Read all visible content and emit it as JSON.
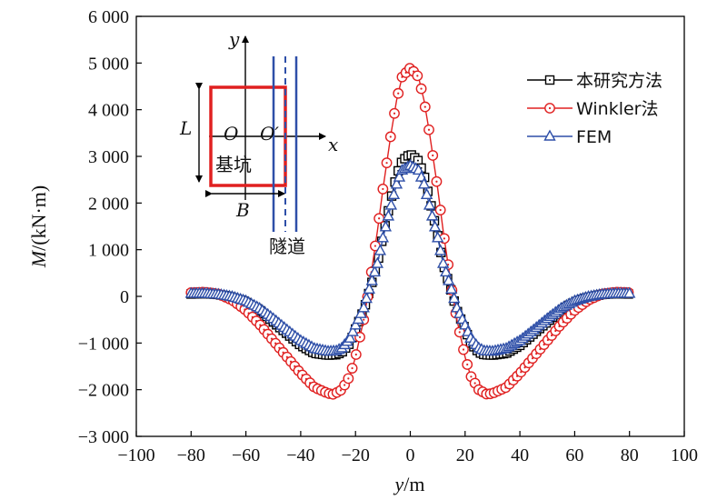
{
  "chart_data": {
    "type": "line",
    "xlabel": "y/m",
    "ylabel": "M/(kN·m)",
    "xlim": [
      -100,
      100
    ],
    "ylim": [
      -3000,
      6000
    ],
    "x_ticks": [
      -100,
      -80,
      -60,
      -40,
      -20,
      0,
      20,
      40,
      60,
      80,
      100
    ],
    "x_tick_labels": [
      "−100",
      "−80",
      "−60",
      "−40",
      "−20",
      "0",
      "20",
      "40",
      "60",
      "80",
      "100"
    ],
    "y_ticks": [
      -3000,
      -2000,
      -1000,
      0,
      1000,
      2000,
      3000,
      4000,
      5000,
      6000
    ],
    "y_tick_labels": [
      "−3 000",
      "−2 000",
      "−1 000",
      "0",
      "1 000",
      "2 000",
      "3 000",
      "4 000",
      "5 000",
      "6 000"
    ],
    "legend_position": "top-right",
    "series": [
      {
        "name": "本研究方法",
        "color": "#000000",
        "marker": "square",
        "x": [
          -80,
          -75,
          -70,
          -65,
          -60,
          -55,
          -50,
          -45,
          -40,
          -35,
          -30,
          -27,
          -25,
          -22,
          -20,
          -17,
          -15,
          -12,
          -10,
          -7,
          -5,
          -3,
          0,
          3,
          5,
          7,
          10,
          12,
          15,
          17,
          20,
          22,
          25,
          27,
          30,
          35,
          40,
          45,
          50,
          55,
          60,
          65,
          70,
          75,
          80
        ],
        "y": [
          50,
          60,
          40,
          -20,
          -120,
          -300,
          -550,
          -800,
          -1050,
          -1220,
          -1260,
          -1250,
          -1200,
          -1000,
          -700,
          -300,
          100,
          700,
          1300,
          2100,
          2600,
          2900,
          3050,
          2900,
          2600,
          2100,
          1300,
          700,
          100,
          -300,
          -700,
          -1000,
          -1200,
          -1250,
          -1260,
          -1220,
          -1050,
          -800,
          -550,
          -300,
          -120,
          -20,
          40,
          60,
          50
        ]
      },
      {
        "name": "Winkler法",
        "color": "#e02020",
        "marker": "circle",
        "x": [
          -80,
          -75,
          -70,
          -65,
          -60,
          -55,
          -50,
          -45,
          -40,
          -35,
          -30,
          -28,
          -25,
          -22,
          -20,
          -17,
          -15,
          -12,
          -10,
          -7,
          -5,
          -3,
          0,
          3,
          5,
          7,
          10,
          12,
          15,
          17,
          20,
          22,
          25,
          28,
          30,
          35,
          40,
          45,
          50,
          55,
          60,
          65,
          70,
          75,
          80
        ],
        "y": [
          80,
          90,
          50,
          -80,
          -300,
          -600,
          -950,
          -1300,
          -1650,
          -1950,
          -2080,
          -2100,
          -2000,
          -1700,
          -1300,
          -500,
          200,
          1400,
          2300,
          3500,
          4200,
          4700,
          4900,
          4700,
          4200,
          3500,
          2300,
          1400,
          200,
          -500,
          -1300,
          -1700,
          -2000,
          -2100,
          -2080,
          -1950,
          -1650,
          -1300,
          -950,
          -600,
          -300,
          -80,
          50,
          90,
          80
        ]
      },
      {
        "name": "FEM",
        "color": "#2e4fa8",
        "marker": "triangle",
        "x": [
          -80,
          -75,
          -70,
          -65,
          -60,
          -55,
          -50,
          -45,
          -40,
          -35,
          -30,
          -27,
          -25,
          -22,
          -20,
          -17,
          -15,
          -12,
          -10,
          -7,
          -5,
          -3,
          0,
          3,
          5,
          7,
          10,
          12,
          15,
          17,
          20,
          22,
          25,
          27,
          30,
          35,
          40,
          45,
          50,
          55,
          60,
          65,
          70,
          75,
          80
        ],
        "y": [
          60,
          60,
          40,
          -10,
          -100,
          -260,
          -480,
          -720,
          -950,
          -1120,
          -1180,
          -1170,
          -1110,
          -900,
          -620,
          -250,
          150,
          700,
          1250,
          1950,
          2400,
          2700,
          2800,
          2700,
          2400,
          1950,
          1250,
          700,
          150,
          -250,
          -620,
          -900,
          -1110,
          -1170,
          -1180,
          -1120,
          -950,
          -720,
          -480,
          -260,
          -100,
          -10,
          40,
          60,
          60
        ]
      }
    ]
  },
  "inset": {
    "label_y": "y",
    "label_x": "x",
    "label_o": "O",
    "label_o_prime": "O′",
    "label_l": "L",
    "label_b": "B",
    "pit_label": "基坑",
    "tunnel_label": "隧道",
    "pit_color": "#e02020",
    "tunnel_color": "#2e4fa8"
  }
}
